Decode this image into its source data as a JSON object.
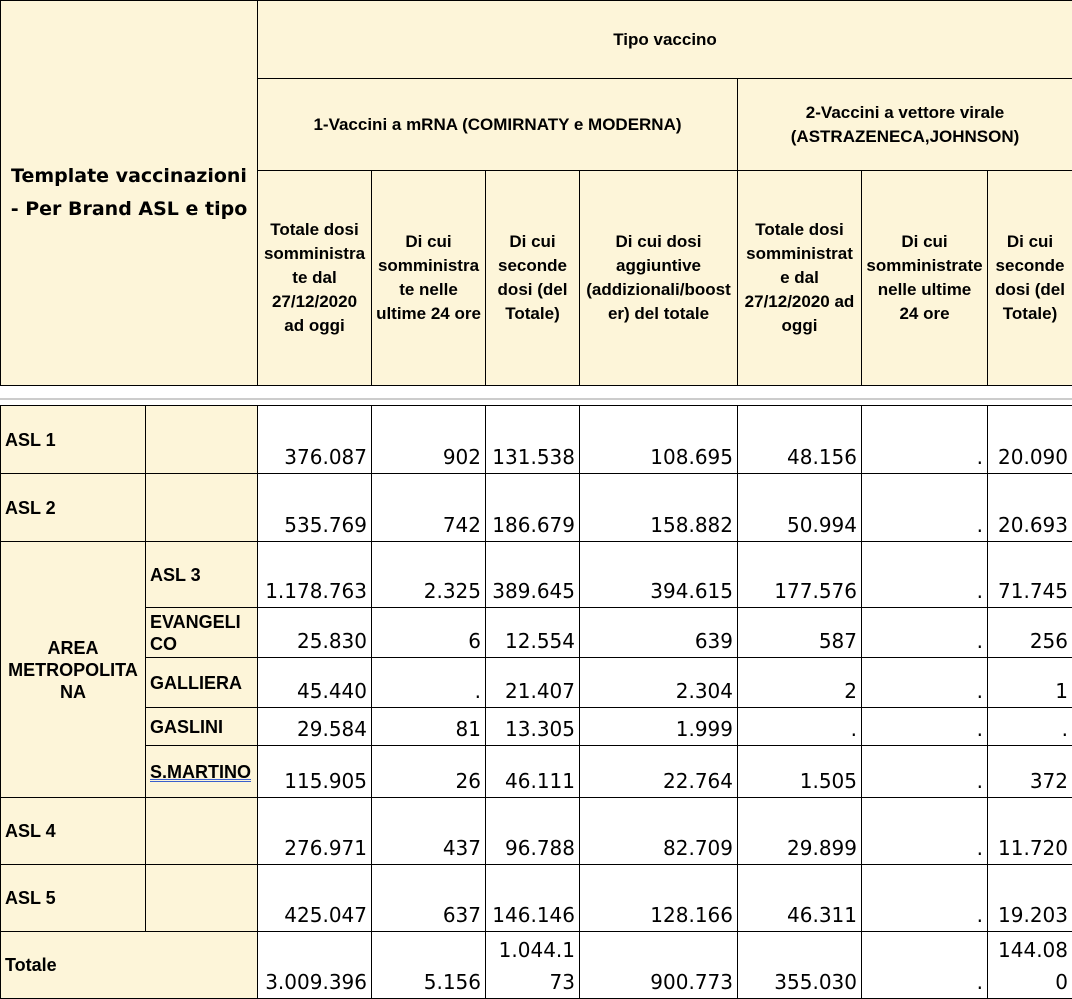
{
  "header": {
    "corner": "Template vaccinazioni - Per Brand ASL e tipo",
    "group": "Tipo vaccino",
    "subgroups": [
      "1-Vaccini a mRNA (COMIRNATY e MODERNA)",
      "2-Vaccini a vettore virale (ASTRAZENECA,JOHNSON)"
    ],
    "columns": [
      "Totale dosi somministrate dal 27/12/2020 ad oggi",
      "Di cui somministrate nelle ultime 24 ore",
      "Di cui seconde dosi (del Totale)",
      "Di cui dosi aggiuntive (addizionali/booster) del totale",
      "Totale dosi somministrate dal 27/12/2020 ad oggi",
      "Di cui somministrate nelle ultime 24 ore",
      "Di cui seconde dosi (del Totale)"
    ]
  },
  "table": {
    "rows": [
      {
        "label": "ASL 1",
        "values": [
          "376.087",
          "902",
          "131.538",
          "108.695",
          "48.156",
          ".",
          "20.090"
        ]
      },
      {
        "label": "ASL 2",
        "values": [
          "535.769",
          "742",
          "186.679",
          "158.882",
          "50.994",
          ".",
          "20.693"
        ]
      },
      {
        "area": "AREA METROPOLITANA",
        "rows": [
          {
            "label": "ASL 3",
            "values": [
              "1.178.763",
              "2.325",
              "389.645",
              "394.615",
              "177.576",
              ".",
              "71.745"
            ]
          },
          {
            "label": "EVANGELICO",
            "values": [
              "25.830",
              "6",
              "12.554",
              "639",
              "587",
              ".",
              "256"
            ]
          },
          {
            "label": "GALLIERA",
            "values": [
              "45.440",
              ".",
              "21.407",
              "2.304",
              "2",
              ".",
              "1"
            ]
          },
          {
            "label": "GASLINI",
            "values": [
              "29.584",
              "81",
              "13.305",
              "1.999",
              ".",
              ".",
              "."
            ]
          },
          {
            "label": "S.MARTINO",
            "values": [
              "115.905",
              "26",
              "46.111",
              "22.764",
              "1.505",
              ".",
              "372"
            ]
          }
        ]
      },
      {
        "label": "ASL 4",
        "values": [
          "276.971",
          "437",
          "96.788",
          "82.709",
          "29.899",
          ".",
          "11.720"
        ]
      },
      {
        "label": "ASL 5",
        "values": [
          "425.047",
          "637",
          "146.146",
          "128.166",
          "46.311",
          ".",
          "19.203"
        ]
      },
      {
        "total": "Totale",
        "values": [
          "3.009.396",
          "5.156",
          "1.044.173",
          "900.773",
          "355.030",
          ".",
          "144.080"
        ]
      }
    ]
  }
}
